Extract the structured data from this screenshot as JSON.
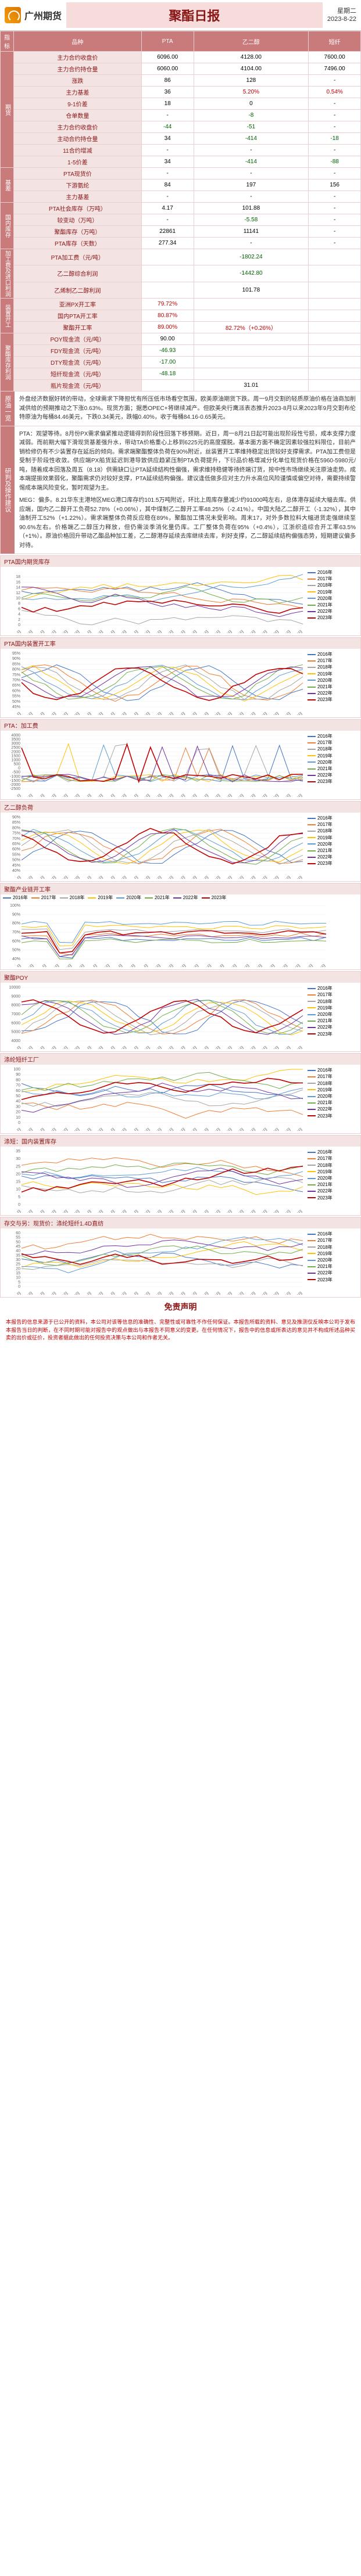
{
  "header": {
    "brand": "广州期货",
    "title": "聚酯日报",
    "weekday": "星期二",
    "date": "2023-8-22"
  },
  "tableHeader": [
    "指标",
    "品种",
    "PTA",
    "乙二醇",
    "短纤"
  ],
  "groups": [
    {
      "label": "期货",
      "rows": [
        {
          "name": "主力合约收盘价",
          "pta": "6096.00",
          "meg": "4128.00",
          "pf": "7600.00"
        },
        {
          "name": "主力合约持仓量",
          "pta": "6060.00",
          "meg": "4104.00",
          "pf": "7496.00"
        },
        {
          "name": "涨跌",
          "pta": "86",
          "meg": "128",
          "pf": "-"
        },
        {
          "name": "主力基差",
          "pta": "36",
          "meg": "5.20%",
          "pf": "0.54%"
        },
        {
          "name": "9-1价差",
          "pta": "18",
          "meg": "0",
          "pf": "-"
        },
        {
          "name": "仓单数量",
          "pta": "-",
          "meg": "-8",
          "pf": "-"
        },
        {
          "name": "主力合约收盘价",
          "pta": "-44",
          "meg": "-51",
          "pf": "-"
        },
        {
          "name": "主动合约持仓量",
          "pta": "34",
          "meg": "-414",
          "pf": "-18"
        },
        {
          "name": "11合约增减",
          "pta": "-",
          "meg": "-",
          "pf": "-"
        },
        {
          "name": "1-5价差",
          "pta": "34",
          "meg": "-414",
          "pf": "-88"
        }
      ]
    },
    {
      "label": "基差",
      "rows": [
        {
          "name": "PTA现货价",
          "pta": "-",
          "meg": "-",
          "pf": "-"
        },
        {
          "name": "下游氨纶",
          "pta": "84",
          "meg": "197",
          "pf": "156"
        },
        {
          "name": "主力基差",
          "pta": "-",
          "meg": "-",
          "pf": "-"
        }
      ]
    },
    {
      "label": "国内库存",
      "rows": [
        {
          "name": "PTA社会库存（万吨）",
          "pta": "4.17",
          "meg": "101.88",
          "pf": "-"
        },
        {
          "name": "较变动（万吨）",
          "pta": "-",
          "meg": "-5.58",
          "pf": "-"
        },
        {
          "name": "聚酯库存（万吨）",
          "pta": "22861",
          "meg": "11141",
          "pf": "-"
        },
        {
          "name": "PTA库存（天数）",
          "pta": "277.34",
          "meg": "-",
          "pf": "-"
        }
      ]
    },
    {
      "label": "加工费及进口利润",
      "rows": [
        {
          "name": "PTA加工费（元/吨）",
          "pta": "",
          "meg": "-1802.24",
          "pf": ""
        },
        {
          "name": "乙二醇综合利润",
          "pta": "",
          "meg": "-1442.80",
          "pf": ""
        },
        {
          "name": "乙烯制乙二醇利润",
          "pta": "",
          "meg": "101.78",
          "pf": ""
        }
      ]
    },
    {
      "label": "装置开工",
      "rows": [
        {
          "name": "亚洲PX开工率",
          "pta": "79.72%",
          "meg": "",
          "pf": ""
        },
        {
          "name": "国内PTA开工率",
          "pta": "80.87%",
          "meg": "",
          "pf": ""
        },
        {
          "name": "聚酯开工率",
          "pta": "89.00%",
          "meg": "82.72%（+0.26%）",
          "pf": ""
        }
      ]
    },
    {
      "label": "聚酯库存利润",
      "rows": [
        {
          "name": "POY现金流（元/吨）",
          "pta": "90.00",
          "meg": "",
          "pf": ""
        },
        {
          "name": "FDY现金流（元/吨）",
          "pta": "-46.93",
          "meg": "",
          "pf": ""
        },
        {
          "name": "DTY现金流（元/吨）",
          "pta": "-17.00",
          "meg": "",
          "pf": ""
        },
        {
          "name": "短纤现金流（元/吨）",
          "pta": "-48.18",
          "meg": "",
          "pf": ""
        },
        {
          "name": "瓶片现金流（元/吨）",
          "pta": "",
          "meg": "31.01",
          "pf": ""
        }
      ]
    }
  ],
  "crude": {
    "label": "原油一览",
    "text": "外盘经济数据好转的带动，全球需求下降担忧有所压低市场看空氛围，欧美原油期货下跌。周一9月交割的轻质原油价格在油商加削减供给的预期推动之下涨0.63%。现货方面；据悉OPEC+将继续减产。但欧美央行鹰派表态推升2023-8月以来2023年9月交割布伦特原油为每桶84.46美元，下跌0.34美元，跌幅0.40%，收于每桶84.16-0.65美元。"
  },
  "analysis": {
    "label": "研判及操作建议",
    "paras": [
      "PTA：观望等待。8月份PX需求偏紧推动逻辑得到阶段性回落下移预期。近日，周一8月21日起可能出现阶段性亏损，成本支撑力度减弱。而前期大幅下滑现货基差强升水，带动TA价格重心上移到6225元的高度摆脱。基本面方面不确定因素较强拉料限位，目前产销检修仍有不少装置存在延后的倾向。需求端聚酯整体负荷在90%附近，丝装置开工率维持稳定出货较好支撑需求。PTA加工费但是受制于阶段性收敛。供应端PX船货延迟到港导致供应趋紧压制PTA负荷提升，下衍品价格增减分化单位现货价格在5960-5980元/吨，随着成本回落及周五（8.18）供需缺口让PTA延续结构性偏强，需求维持稳健等待终端订货，按中性市场继续关注原油走势。成本端提振效果弱化，聚酯需求仍对较好支撑，PTA延续结构偏强。建议逢低做多应对主力升水高位风险谨慎或偏空对待，需要持续警惕成本端风险变化，暂时观望为主。",
      "MEG：偏多。8.21华东主港地区MEG港口库存约101.5万吨附近，环比上周库存量减少约91000吨左右，总体港存延续大幅去库。供应端，国内乙二醇开工负荷52.78%（+0.06%），其中煤制乙二醇开工率48.25%（-2.41%）。中国大陆乙二醇开工（-1.32%），其中油制开工52%（+1.22%）。需求端整体负荷反应稳在89%，聚酯加工情况未受影响。周末17，对外多数拉料大幅进货走强继续至90.6%左右。价格端乙二醇压力释放，但仍需淡季消化量仍库。工厂整体负荷在95%（+0.4%），江浙织造综合开工率63.5%（+1%）。原油价格回升带动乙酯品种加工差，乙二醇港存延续去库继续去库，利好支撑，乙二醇延续结构偏强态势，短期建议偏多对待。"
    ]
  },
  "charts": [
    {
      "title": "PTA国内期货库存",
      "canvasW": 520,
      "ylim": [
        0,
        20
      ],
      "yticks": [
        0,
        2,
        4,
        6,
        8,
        10,
        12,
        14,
        16,
        18
      ],
      "type": "line",
      "legendYears": true,
      "pattern": "spread"
    },
    {
      "title": "PTA国内装置开工率",
      "canvasW": 520,
      "ylim": [
        45,
        95
      ],
      "yticks": [
        45,
        50,
        55,
        60,
        65,
        70,
        75,
        80,
        85,
        90,
        95
      ],
      "unit": "%",
      "type": "line",
      "legendYears": true,
      "pattern": "band"
    },
    {
      "title": "PTA：加工费",
      "canvasW": 520,
      "ylim": [
        -2500,
        4000
      ],
      "yticks": [
        -2500,
        -2000,
        -1500,
        -1000,
        -500,
        0,
        500,
        1000,
        1500,
        2000,
        2500,
        3000,
        3500,
        4000
      ],
      "type": "line",
      "legendYears": true,
      "pattern": "spike"
    },
    {
      "title": "乙二醇负荷",
      "canvasW": 520,
      "ylim": [
        40,
        90
      ],
      "yticks": [
        40,
        45,
        50,
        55,
        60,
        65,
        70,
        75,
        80,
        85,
        90
      ],
      "unit": "%",
      "type": "line",
      "legendYears": true,
      "pattern": "band"
    },
    {
      "title": "聚酯产业链开工率",
      "canvasW": 560,
      "ylim": [
        40,
        100
      ],
      "yticks": [
        40,
        50,
        60,
        70,
        80,
        90,
        100
      ],
      "unit": "%",
      "type": "line",
      "legendYears": true,
      "pattern": "dip",
      "fullw": true
    },
    {
      "title": "聚酯POY",
      "canvasW": 520,
      "ylim": [
        4000,
        10000
      ],
      "yticks": [
        4000,
        5000,
        6000,
        7000,
        8000,
        9000,
        10000
      ],
      "type": "line",
      "legendYears": true,
      "pattern": "band"
    },
    {
      "title": "涤纶短纤工厂",
      "canvasW": 520,
      "ylim": [
        0,
        100
      ],
      "yticks": [
        0,
        10,
        20,
        30,
        40,
        50,
        60,
        70,
        80,
        90,
        100
      ],
      "type": "line",
      "legendYears": true,
      "pattern": "spread"
    },
    {
      "title": "涤短：国内装置库存",
      "canvasW": 520,
      "ylim": [
        0,
        35
      ],
      "yticks": [
        0,
        5,
        10,
        15,
        20,
        25,
        30,
        35
      ],
      "type": "line",
      "legendYears": true,
      "pattern": "spread"
    },
    {
      "title": "存交与另：现货价：涤纶短纤1.4D直纺",
      "canvasW": 520,
      "ylim": [
        0,
        60
      ],
      "yticks": [
        0,
        5,
        10,
        15,
        20,
        25,
        30,
        35,
        40,
        45,
        50,
        55,
        60
      ],
      "type": "line",
      "legendYears": true,
      "pattern": "spread"
    }
  ],
  "legendYears": [
    {
      "y": "2016年",
      "c": "#4472c4"
    },
    {
      "y": "2017年",
      "c": "#ed7d31"
    },
    {
      "y": "2018年",
      "c": "#a5a5a5"
    },
    {
      "y": "2019年",
      "c": "#ffc000"
    },
    {
      "y": "2020年",
      "c": "#5b9bd5"
    },
    {
      "y": "2021年",
      "c": "#70ad47"
    },
    {
      "y": "2022年",
      "c": "#7030a0"
    },
    {
      "y": "2023年",
      "c": "#c00000"
    }
  ],
  "months": [
    "1月1日",
    "1月16日",
    "1月31日",
    "2月15日",
    "3月2日",
    "3月17日",
    "4月1日",
    "4月16日",
    "5月1日",
    "5月16日",
    "5月31日",
    "6月15日",
    "6月30日",
    "7月15日",
    "7月30日",
    "8月14日",
    "8月29日",
    "9月13日",
    "9月28日",
    "10月13日",
    "10月28日",
    "11月12日",
    "11月27日",
    "12月12日",
    "12月27日"
  ],
  "disclaimer": {
    "title": "免责声明",
    "text": "本报告的信息来源于已公开的资料，本公司对该等信息的准确性、完整性或可靠性不作任何保证。本报告所载的资料、意见及推测仅反映本公司于发布本报告当日的判断，在不同时期可能对报告中的观点做出与本报告不同意义的变更。在任何情况下，报告中的信息或所表达的意见并不构成所述品种买卖的出价或征价，投资者据此做出的任何投资决策与本公司和作者无关。"
  }
}
